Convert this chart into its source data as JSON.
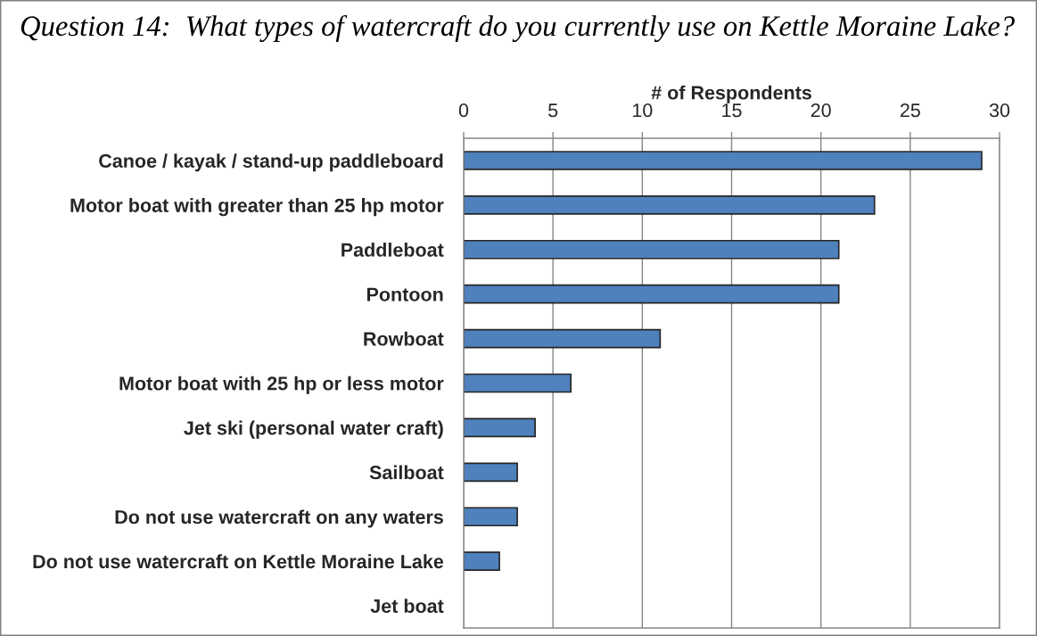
{
  "chart_data": {
    "type": "bar",
    "orientation": "horizontal",
    "title": "Question 14:  What types of watercraft do you currently use on Kettle Moraine Lake?",
    "xlabel": "# of Respondents",
    "categories": [
      "Canoe / kayak / stand-up paddleboard",
      "Motor boat with greater than 25 hp motor",
      "Paddleboat",
      "Pontoon",
      "Rowboat",
      "Motor boat with 25 hp or less motor",
      "Jet ski (personal water craft)",
      "Sailboat",
      "Do not use watercraft on any waters",
      "Do not use watercraft on Kettle Moraine Lake",
      "Jet boat"
    ],
    "values": [
      29,
      23,
      21,
      21,
      11,
      6,
      4,
      3,
      3,
      2,
      0
    ],
    "color": "#4f81bd",
    "xlim": [
      0,
      30
    ],
    "xticks": [
      0,
      5,
      10,
      15,
      20,
      25,
      30
    ],
    "grid": "x",
    "legend": false
  }
}
